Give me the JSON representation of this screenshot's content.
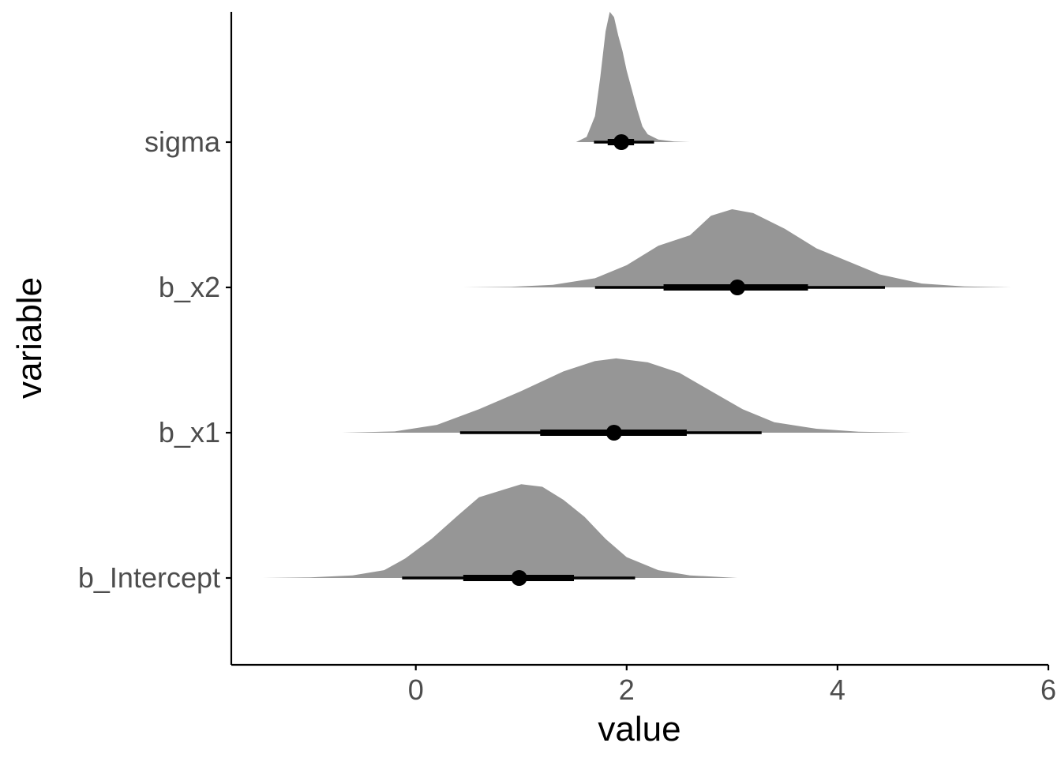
{
  "chart_data": {
    "type": "halfeye",
    "xlabel": "value",
    "ylabel": "variable",
    "xlim": [
      -1.75,
      6.0
    ],
    "x_ticks": [
      {
        "value": 0,
        "label": "0"
      },
      {
        "value": 2,
        "label": "2"
      },
      {
        "value": 4,
        "label": "4"
      },
      {
        "value": 6,
        "label": "6"
      }
    ],
    "grid": false,
    "colors": {
      "density": "#969696",
      "interval": "#000000",
      "axis": "#000000",
      "tick_label": "#4d4d4d"
    },
    "series": [
      {
        "name": "sigma",
        "point": 1.95,
        "interval_66": [
          1.82,
          2.07
        ],
        "interval_95": [
          1.69,
          2.26
        ],
        "density": [
          [
            1.52,
            0.0
          ],
          [
            1.62,
            0.04
          ],
          [
            1.7,
            0.2
          ],
          [
            1.75,
            0.5
          ],
          [
            1.8,
            0.85
          ],
          [
            1.84,
            1.0
          ],
          [
            1.88,
            0.96
          ],
          [
            1.92,
            0.82
          ],
          [
            1.96,
            0.7
          ],
          [
            2.0,
            0.55
          ],
          [
            2.05,
            0.4
          ],
          [
            2.1,
            0.25
          ],
          [
            2.15,
            0.12
          ],
          [
            2.2,
            0.06
          ],
          [
            2.3,
            0.02
          ],
          [
            2.45,
            0.005
          ],
          [
            2.6,
            0.0
          ]
        ]
      },
      {
        "name": "b_x2",
        "point": 3.05,
        "interval_66": [
          2.35,
          3.72
        ],
        "interval_95": [
          1.7,
          4.45
        ],
        "density": [
          [
            0.45,
            0.0
          ],
          [
            0.9,
            0.005
          ],
          [
            1.3,
            0.02
          ],
          [
            1.7,
            0.07
          ],
          [
            2.0,
            0.17
          ],
          [
            2.3,
            0.32
          ],
          [
            2.6,
            0.4
          ],
          [
            2.8,
            0.55
          ],
          [
            3.0,
            0.6
          ],
          [
            3.2,
            0.57
          ],
          [
            3.5,
            0.45
          ],
          [
            3.8,
            0.3
          ],
          [
            4.1,
            0.2
          ],
          [
            4.4,
            0.1
          ],
          [
            4.8,
            0.03
          ],
          [
            5.2,
            0.008
          ],
          [
            5.65,
            0.0
          ]
        ]
      },
      {
        "name": "b_x1",
        "point": 1.88,
        "interval_66": [
          1.18,
          2.57
        ],
        "interval_95": [
          0.42,
          3.28
        ],
        "density": [
          [
            -0.7,
            0.0
          ],
          [
            -0.2,
            0.01
          ],
          [
            0.2,
            0.06
          ],
          [
            0.6,
            0.18
          ],
          [
            1.0,
            0.32
          ],
          [
            1.4,
            0.47
          ],
          [
            1.7,
            0.55
          ],
          [
            1.9,
            0.57
          ],
          [
            2.2,
            0.54
          ],
          [
            2.5,
            0.46
          ],
          [
            2.8,
            0.32
          ],
          [
            3.1,
            0.18
          ],
          [
            3.4,
            0.08
          ],
          [
            3.8,
            0.03
          ],
          [
            4.2,
            0.008
          ],
          [
            4.7,
            0.0
          ]
        ]
      },
      {
        "name": "b_Intercept",
        "point": 0.98,
        "interval_66": [
          0.45,
          1.5
        ],
        "interval_95": [
          -0.13,
          2.08
        ],
        "density": [
          [
            -1.45,
            0.0
          ],
          [
            -1.0,
            0.005
          ],
          [
            -0.6,
            0.02
          ],
          [
            -0.3,
            0.06
          ],
          [
            -0.1,
            0.15
          ],
          [
            0.15,
            0.3
          ],
          [
            0.4,
            0.48
          ],
          [
            0.6,
            0.62
          ],
          [
            0.8,
            0.67
          ],
          [
            1.0,
            0.72
          ],
          [
            1.2,
            0.7
          ],
          [
            1.4,
            0.6
          ],
          [
            1.6,
            0.47
          ],
          [
            1.8,
            0.3
          ],
          [
            2.0,
            0.16
          ],
          [
            2.3,
            0.06
          ],
          [
            2.6,
            0.02
          ],
          [
            3.05,
            0.0
          ]
        ]
      }
    ]
  }
}
